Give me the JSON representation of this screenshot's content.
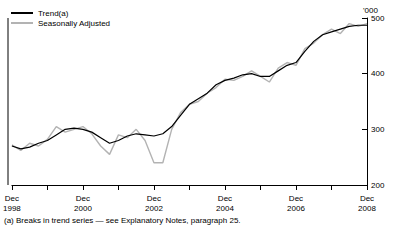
{
  "chart_data": {
    "type": "line",
    "ylabel": "'000",
    "annotations": [
      "(a) Breaks in trend series — see Explanatory Notes, paragraph 25."
    ],
    "categories": [
      "Dec 1998",
      null,
      null,
      null,
      null,
      null,
      null,
      null,
      "Dec 2000",
      null,
      null,
      null,
      null,
      null,
      null,
      null,
      "Dec 2002",
      null,
      null,
      null,
      null,
      null,
      null,
      null,
      "Dec 2004",
      null,
      null,
      null,
      null,
      null,
      null,
      null,
      "Dec 2006",
      null,
      null,
      null,
      null,
      null,
      null,
      null,
      "Dec 2008"
    ],
    "series": [
      {
        "name": "Trend(a)",
        "color": "#000000",
        "values": [
          270,
          265,
          268,
          275,
          280,
          290,
          300,
          302,
          300,
          295,
          285,
          275,
          280,
          288,
          292,
          290,
          288,
          292,
          305,
          325,
          345,
          355,
          365,
          380,
          388,
          392,
          398,
          400,
          395,
          395,
          405,
          415,
          420,
          440,
          458,
          470,
          475,
          480,
          485,
          487,
          487
        ]
      },
      {
        "name": "Seasonally Adjusted",
        "color": "#b3b3b3",
        "values": [
          272,
          262,
          275,
          270,
          282,
          305,
          295,
          300,
          305,
          292,
          270,
          255,
          290,
          285,
          300,
          280,
          240,
          240,
          300,
          330,
          345,
          350,
          365,
          375,
          390,
          388,
          395,
          405,
          395,
          385,
          410,
          420,
          415,
          445,
          455,
          470,
          480,
          472,
          490,
          485,
          490
        ]
      }
    ],
    "ylim": [
      200,
      500
    ],
    "yticks": [
      200,
      300,
      400,
      500
    ],
    "grid": false,
    "legend": "top-left"
  }
}
